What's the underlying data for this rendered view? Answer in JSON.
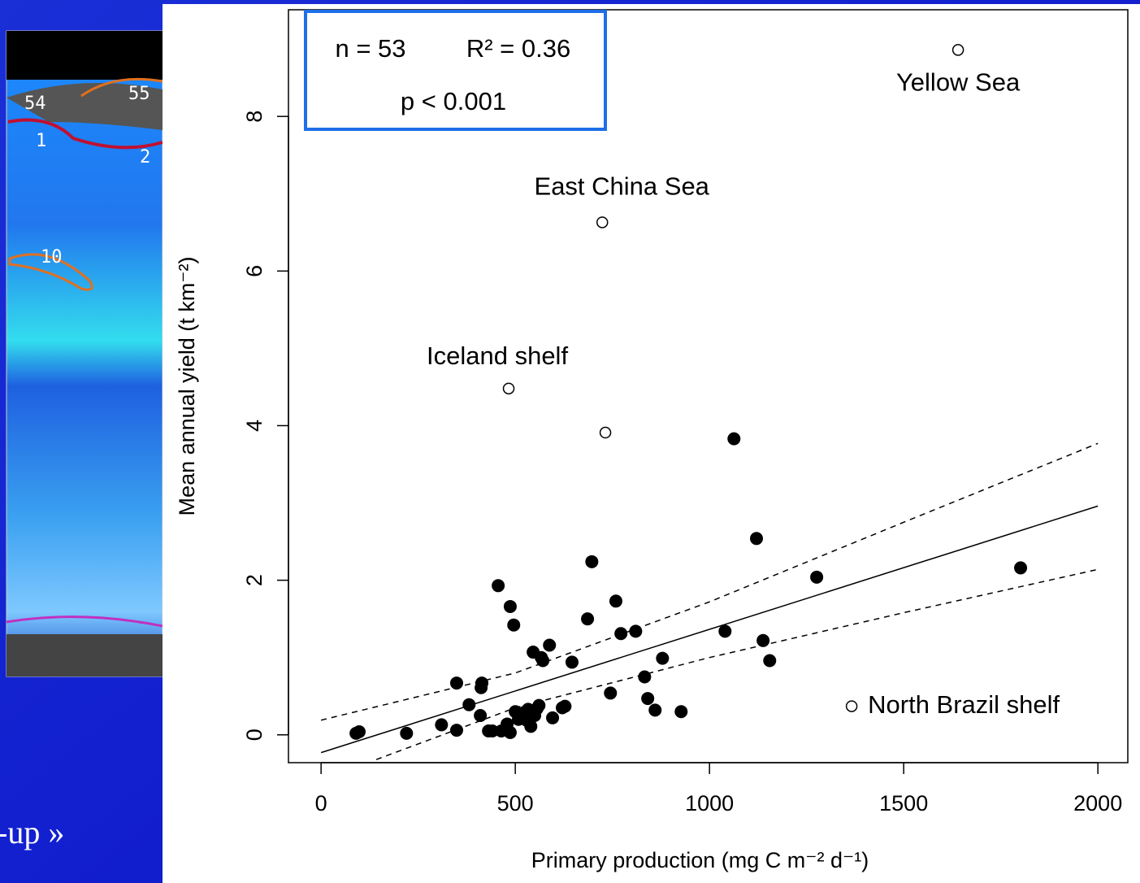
{
  "chart_data": {
    "type": "scatter",
    "xlabel": "Primary production (mg C m⁻² d⁻¹)",
    "ylabel": "Mean annual yield (t km⁻²)",
    "annotations": [
      "n = 53",
      "R² = 0.36",
      "p < 0.001"
    ],
    "xlim": [
      -84,
      2077
    ],
    "ylim": [
      -0.36,
      9.38
    ],
    "xticks": [
      0,
      500,
      1000,
      1500,
      2000
    ],
    "yticks": [
      0,
      2,
      4,
      6,
      8
    ],
    "series": [
      {
        "color": "#000000",
        "marker": "filled",
        "x": [
          90,
          98,
          220,
          310,
          349,
          349,
          381,
          410,
          412,
          414,
          431,
          441,
          456,
          464,
          479,
          487,
          487,
          496,
          500,
          508,
          523,
          529,
          533,
          540,
          546,
          550,
          556,
          561,
          567,
          571,
          588,
          596,
          621,
          628,
          646,
          686,
          697,
          745,
          759,
          772,
          810,
          833,
          841,
          860,
          879,
          927,
          1040,
          1063,
          1121,
          1138,
          1155,
          1276,
          1801
        ],
        "values": [
          0.02,
          0.04,
          0.02,
          0.13,
          0.67,
          0.06,
          0.39,
          0.25,
          0.61,
          0.67,
          0.05,
          0.05,
          1.93,
          0.05,
          0.14,
          1.66,
          0.03,
          1.42,
          0.3,
          0.2,
          0.29,
          0.19,
          0.33,
          0.11,
          1.07,
          0.25,
          0.34,
          0.38,
          1.0,
          0.96,
          1.16,
          0.22,
          0.35,
          0.37,
          0.94,
          1.5,
          2.24,
          0.54,
          1.73,
          1.31,
          1.34,
          0.75,
          0.47,
          0.32,
          0.99,
          0.3,
          1.34,
          3.83,
          2.54,
          1.22,
          0.96,
          2.04,
          2.16
        ]
      },
      {
        "color": "#000000",
        "marker": "open",
        "x": [
          1640,
          724,
          483,
          732,
          1366
        ],
        "values": [
          8.86,
          6.63,
          4.48,
          3.91,
          0.37
        ],
        "point_labels": [
          "Yellow Sea",
          "East China Sea",
          "Iceland shelf",
          null,
          "North Brazil shelf"
        ]
      }
    ],
    "lines": [
      {
        "style": "solid",
        "x": [
          0,
          2000
        ],
        "values": [
          -0.23,
          2.96
        ]
      },
      {
        "style": "dashed",
        "x": [
          0,
          500,
          1000,
          1500,
          2000
        ],
        "values": [
          0.19,
          0.8,
          1.72,
          2.75,
          3.77
        ]
      },
      {
        "style": "dashed",
        "x": [
          142,
          500,
          1000,
          1500,
          2000
        ],
        "values": [
          -0.32,
          0.35,
          1.0,
          1.58,
          2.14
        ]
      }
    ]
  },
  "slide": {
    "map_labels": [
      "54",
      "55",
      "1",
      "2",
      "10"
    ],
    "footer_text": "-up »"
  }
}
